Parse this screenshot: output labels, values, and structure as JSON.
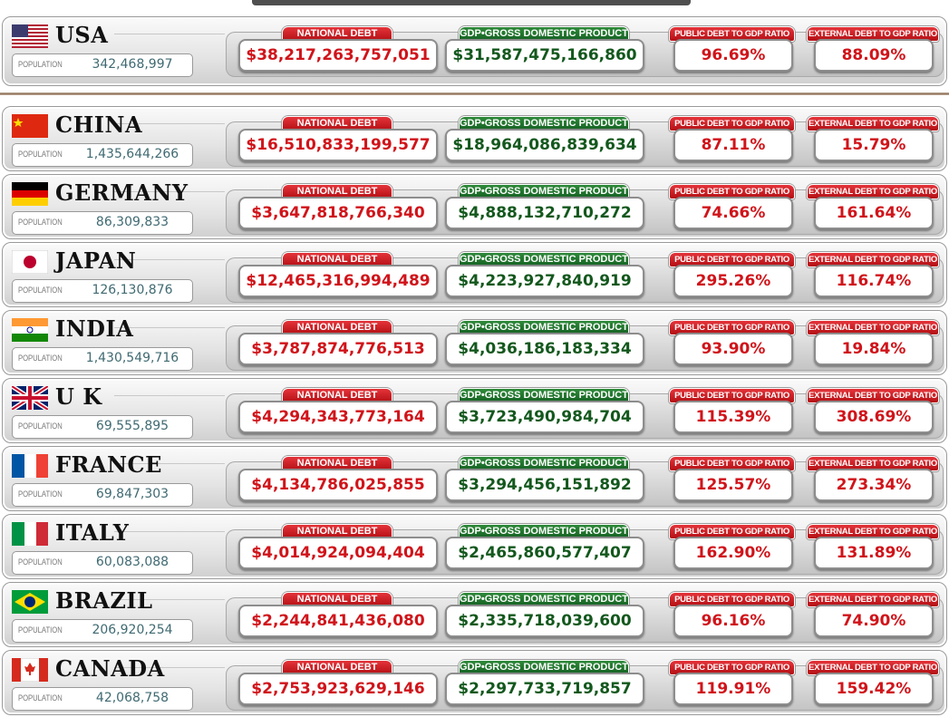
{
  "labels": {
    "population": "POPULATION",
    "national_debt": "NATIONAL DEBT",
    "gdp": "GDP•GROSS DOMESTIC PRODUCT",
    "public_debt_ratio": "PUBLIC DEBT TO GDP RATIO",
    "external_debt_ratio": "EXTERNAL DEBT TO GDP RATIO"
  },
  "rows": [
    {
      "country": "USA",
      "population": "342,468,997",
      "national_debt": "$38,217,263,757,051",
      "gdp": "$31,587,475,166,860",
      "public_debt_ratio": "96.69%",
      "external_debt_ratio": "88.09%"
    },
    {
      "country": "CHINA",
      "population": "1,435,644,266",
      "national_debt": "$16,510,833,199,577",
      "gdp": "$18,964,086,839,634",
      "public_debt_ratio": "87.11%",
      "external_debt_ratio": "15.79%"
    },
    {
      "country": "GERMANY",
      "population": "86,309,833",
      "national_debt": "$3,647,818,766,340",
      "gdp": "$4,888,132,710,272",
      "public_debt_ratio": "74.66%",
      "external_debt_ratio": "161.64%"
    },
    {
      "country": "JAPAN",
      "population": "126,130,876",
      "national_debt": "$12,465,316,994,489",
      "gdp": "$4,223,927,840,919",
      "public_debt_ratio": "295.26%",
      "external_debt_ratio": "116.74%"
    },
    {
      "country": "INDIA",
      "population": "1,430,549,716",
      "national_debt": "$3,787,874,776,513",
      "gdp": "$4,036,186,183,334",
      "public_debt_ratio": "93.90%",
      "external_debt_ratio": "19.84%"
    },
    {
      "country": "U K",
      "population": "69,555,895",
      "national_debt": "$4,294,343,773,164",
      "gdp": "$3,723,490,984,704",
      "public_debt_ratio": "115.39%",
      "external_debt_ratio": "308.69%"
    },
    {
      "country": "FRANCE",
      "population": "69,847,303",
      "national_debt": "$4,134,786,025,855",
      "gdp": "$3,294,456,151,892",
      "public_debt_ratio": "125.57%",
      "external_debt_ratio": "273.34%"
    },
    {
      "country": "ITALY",
      "population": "60,083,088",
      "national_debt": "$4,014,924,094,404",
      "gdp": "$2,465,860,577,407",
      "public_debt_ratio": "162.90%",
      "external_debt_ratio": "131.89%"
    },
    {
      "country": "BRAZIL",
      "population": "206,920,254",
      "national_debt": "$2,244,841,436,080",
      "gdp": "$2,335,718,039,600",
      "public_debt_ratio": "96.16%",
      "external_debt_ratio": "74.90%"
    },
    {
      "country": "CANADA",
      "population": "42,068,758",
      "national_debt": "$2,753,923,629,146",
      "gdp": "$2,297,733,719,857",
      "public_debt_ratio": "119.91%",
      "external_debt_ratio": "159.42%"
    }
  ]
}
